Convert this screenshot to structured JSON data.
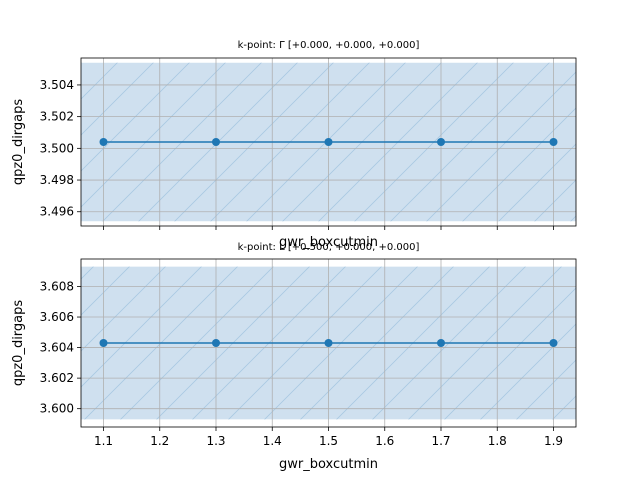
{
  "chart_data": [
    {
      "type": "line",
      "title": "k-point: Γ [+0.000, +0.000, +0.000]",
      "xlabel": "gwr_boxcutmin",
      "ylabel": "qpz0_dirgaps",
      "x": [
        1.1,
        1.3,
        1.5,
        1.7,
        1.9
      ],
      "series": [
        {
          "values": [
            3.5004,
            3.5004,
            3.5004,
            3.5004,
            3.5004
          ]
        }
      ],
      "band": [
        3.4954,
        3.5054
      ],
      "xlim": [
        1.06,
        1.94
      ],
      "ylim": [
        3.4951,
        3.5057
      ],
      "xticks": [
        1.1,
        1.2,
        1.3,
        1.4,
        1.5,
        1.6,
        1.7,
        1.8,
        1.9
      ],
      "yticks": [
        "3.496",
        "3.498",
        "3.500",
        "3.502",
        "3.504"
      ],
      "show_xticklabels": false,
      "grid": true
    },
    {
      "type": "line",
      "title": "k-point: L [+0.500, +0.000, +0.000]",
      "xlabel": "gwr_boxcutmin",
      "ylabel": "qpz0_dirgaps",
      "x": [
        1.1,
        1.3,
        1.5,
        1.7,
        1.9
      ],
      "series": [
        {
          "values": [
            3.6043,
            3.6043,
            3.6043,
            3.6043,
            3.6043
          ]
        }
      ],
      "band": [
        3.5993,
        3.6093
      ],
      "xlim": [
        1.06,
        1.94
      ],
      "ylim": [
        3.5988,
        3.6098
      ],
      "xticks": [
        1.1,
        1.2,
        1.3,
        1.4,
        1.5,
        1.6,
        1.7,
        1.8,
        1.9
      ],
      "xticklabels": [
        "1.1",
        "1.2",
        "1.3",
        "1.4",
        "1.5",
        "1.6",
        "1.7",
        "1.8",
        "1.9"
      ],
      "yticks": [
        "3.600",
        "3.602",
        "3.604",
        "3.606",
        "3.608"
      ],
      "show_xticklabels": true,
      "grid": true
    }
  ],
  "colors": {
    "line": "#1f77b4",
    "band_fill": "#cfe0ef",
    "hatch": "#a9c8e2",
    "grid": "#b0b0b0",
    "axes": "#000000"
  }
}
